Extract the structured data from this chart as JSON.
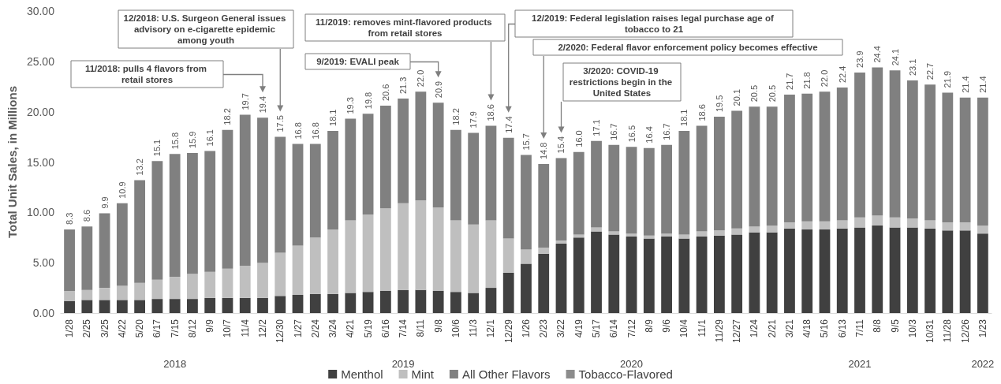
{
  "chart_data": {
    "type": "bar",
    "stacked": true,
    "ylabel": "Total Unit Sales, in Millions",
    "categories": [
      "1/28",
      "2/25",
      "3/25",
      "4/22",
      "5/20",
      "6/17",
      "7/15",
      "8/12",
      "9/9",
      "10/7",
      "11/4",
      "12/2",
      "12/30",
      "1/27",
      "2/24",
      "3/24",
      "4/21",
      "5/19",
      "6/16",
      "7/14",
      "8/11",
      "9/8",
      "10/6",
      "11/3",
      "12/1",
      "12/29",
      "1/26",
      "2/23",
      "3/22",
      "4/19",
      "5/17",
      "6/14",
      "7/12",
      "8/9",
      "9/6",
      "10/4",
      "11/1",
      "11/29",
      "12/27",
      "1/24",
      "2/21",
      "3/21",
      "4/18",
      "5/16",
      "6/13",
      "7/11",
      "8/8",
      "9/5",
      "10/3",
      "10/31",
      "11/28",
      "12/26",
      "1/23"
    ],
    "series": [
      {
        "name": "Menthol",
        "color": "#404040",
        "values": [
          1.2,
          1.3,
          1.3,
          1.3,
          1.3,
          1.4,
          1.4,
          1.4,
          1.5,
          1.5,
          1.5,
          1.5,
          1.7,
          1.8,
          1.9,
          1.9,
          2.0,
          2.1,
          2.2,
          2.3,
          2.3,
          2.2,
          2.1,
          2.0,
          2.5,
          4.0,
          4.9,
          5.9,
          6.9,
          7.5,
          8.1,
          7.8,
          7.6,
          7.4,
          7.6,
          7.4,
          7.6,
          7.7,
          7.8,
          8.0,
          8.0,
          8.4,
          8.3,
          8.3,
          8.4,
          8.5,
          8.7,
          8.5,
          8.5,
          8.4,
          8.2,
          8.2,
          7.9
        ]
      },
      {
        "name": "Mint",
        "color": "#bfbfbf",
        "values": [
          1.0,
          1.0,
          1.2,
          1.4,
          1.7,
          1.9,
          2.2,
          2.5,
          2.6,
          2.9,
          3.2,
          3.5,
          4.3,
          4.9,
          5.6,
          6.4,
          7.2,
          7.7,
          8.2,
          8.6,
          8.9,
          8.3,
          7.1,
          6.8,
          6.7,
          3.4,
          1.4,
          0.6,
          0.3,
          0.3,
          0.4,
          0.3,
          0.3,
          0.3,
          0.3,
          0.4,
          0.5,
          0.5,
          0.6,
          0.6,
          0.7,
          0.6,
          0.8,
          0.8,
          0.8,
          1.0,
          1.0,
          1.0,
          0.9,
          0.8,
          0.8,
          0.8,
          0.8
        ]
      },
      {
        "name": "All Other Flavors",
        "color": "#808080",
        "values": [
          6.1,
          6.3,
          7.4,
          8.2,
          10.2,
          11.8,
          12.2,
          12.0,
          12.0,
          13.8,
          15.0,
          14.4,
          11.5,
          10.1,
          9.3,
          9.8,
          10.1,
          10.0,
          10.2,
          10.4,
          10.8,
          10.4,
          9.0,
          9.1,
          9.4,
          10.0,
          9.4,
          8.3,
          8.2,
          8.2,
          8.6,
          8.6,
          8.6,
          8.7,
          8.8,
          10.3,
          10.5,
          11.3,
          11.7,
          11.9,
          11.8,
          12.7,
          12.7,
          12.9,
          13.2,
          14.4,
          14.7,
          14.6,
          13.7,
          13.5,
          12.9,
          12.4,
          12.7
        ]
      },
      {
        "name": "Tobacco-Flavored",
        "color": "#8c8c8c",
        "values": [
          null,
          null,
          null,
          null,
          null,
          null,
          null,
          null,
          null,
          null,
          null,
          null,
          null,
          null,
          null,
          null,
          null,
          null,
          null,
          null,
          null,
          null,
          null,
          null,
          null,
          null,
          null,
          null,
          null,
          null,
          null,
          null,
          null,
          null,
          null,
          null,
          null,
          null,
          null,
          null,
          null,
          null,
          null,
          null,
          null,
          null,
          null,
          null,
          null,
          null,
          null,
          null,
          null
        ]
      }
    ],
    "totals": [
      "8.3",
      "8.6",
      "9.9",
      "10.9",
      "13.2",
      "15.1",
      "15.8",
      "15.9",
      "16.1",
      "18.2",
      "19.7",
      "19.4",
      "17.5",
      "16.8",
      "16.8",
      "18.1",
      "19.3",
      "19.8",
      "20.6",
      "21.3",
      "22.0",
      "20.9",
      "18.2",
      "17.9",
      "18.6",
      "17.4",
      "15.7",
      "14.8",
      "15.4",
      "16.0",
      "17.1",
      "16.7",
      "16.5",
      "16.4",
      "16.7",
      "18.1",
      "18.6",
      "19.5",
      "20.1",
      "20.5",
      "20.5",
      "21.7",
      "21.8",
      "22.0",
      "22.4",
      "23.9",
      "24.4",
      "24.1",
      "23.1",
      "22.7",
      "21.9",
      "21.4",
      "21.4"
    ],
    "ylim": [
      0,
      30
    ],
    "yticks": [
      {
        "value": 0,
        "label": "0.00"
      },
      {
        "value": 5,
        "label": "5.00"
      },
      {
        "value": 10,
        "label": "10.00"
      },
      {
        "value": 15,
        "label": "15.00"
      },
      {
        "value": 20,
        "label": "20.00"
      },
      {
        "value": 25,
        "label": "25.00"
      },
      {
        "value": 30,
        "label": "30.00"
      }
    ],
    "grid": false,
    "legend": "bottom",
    "annotations": [
      "11/2018: pulls 4 flavors from retail stores",
      "12/2018: U.S. Surgeon General issues advisory on e-cigarette epidemic among youth",
      "9/2019: EVALI peak",
      "11/2019: removes mint-flavored products from retail stores",
      "12/2019: Federal legislation raises legal purchase age of tobacco to 21",
      "2/2020: Federal flavor enforcement policy becomes effective",
      "3/2020: COVID-19 restrictions begin in the United States",
      "2018",
      "2019",
      "2020",
      "2021",
      "2022"
    ]
  }
}
